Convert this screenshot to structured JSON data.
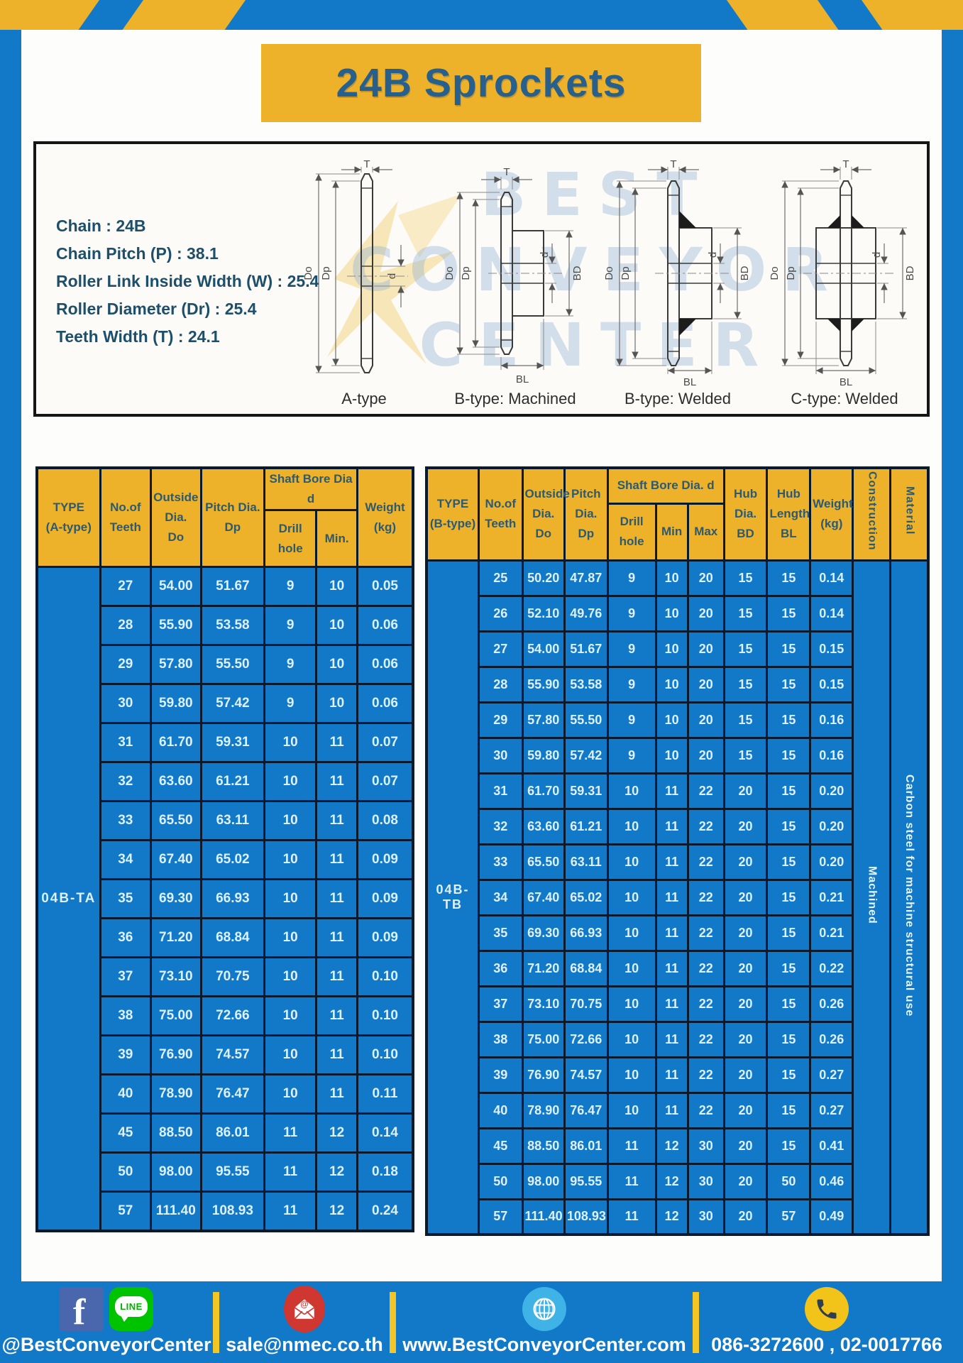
{
  "page": {
    "title": "24B Sprockets"
  },
  "colors": {
    "frame_blue": "#1278c8",
    "accent_yellow": "#eeb22a",
    "border_navy": "#0a1a2e",
    "cell_text": "#ddf1fe",
    "header_text": "#2b5a72",
    "title_text": "#27608c"
  },
  "specs": {
    "lines": [
      "Chain : 24B",
      "Chain Pitch (P) : 38.1",
      "Roller Link Inside Width (W) : 25.4",
      "Roller Diameter (Dr) : 25.4",
      "Teeth Width (T) : 24.1"
    ]
  },
  "watermark": {
    "lines": [
      "BEST",
      "CONVEYOR",
      "CENTER"
    ]
  },
  "diagrams": {
    "figures": [
      {
        "caption": "A-type",
        "labels": {
          "t": "T",
          "do": "Do",
          "dp": "Dp",
          "d": "d"
        }
      },
      {
        "caption": "B-type: Machined",
        "labels": {
          "t": "T",
          "do": "Do",
          "dp": "Dp",
          "d": "d",
          "bd": "BD",
          "bl": "BL"
        }
      },
      {
        "caption": "B-type: Welded",
        "labels": {
          "t": "T",
          "do": "Do",
          "dp": "Dp",
          "d": "d",
          "bd": "BD",
          "bl": "BL"
        }
      },
      {
        "caption": "C-type: Welded",
        "labels": {
          "t": "T",
          "do": "Do",
          "dp": "Dp",
          "d": "d",
          "bd": "BD",
          "bl": "BL"
        }
      }
    ]
  },
  "table_a": {
    "headers": {
      "type": "TYPE\n(A-type)",
      "teeth": "No.of\nTeeth",
      "outside": "Outside\nDia.\nDo",
      "pitch": "Pitch Dia.\nDp",
      "shaft": "Shaft Bore Dia d",
      "drill": "Drill hole",
      "min": "Min.",
      "weight": "Weight\n(kg)"
    },
    "type": "04B-TA",
    "rows": [
      [
        "27",
        "54.00",
        "51.67",
        "9",
        "10",
        "0.05"
      ],
      [
        "28",
        "55.90",
        "53.58",
        "9",
        "10",
        "0.06"
      ],
      [
        "29",
        "57.80",
        "55.50",
        "9",
        "10",
        "0.06"
      ],
      [
        "30",
        "59.80",
        "57.42",
        "9",
        "10",
        "0.06"
      ],
      [
        "31",
        "61.70",
        "59.31",
        "10",
        "11",
        "0.07"
      ],
      [
        "32",
        "63.60",
        "61.21",
        "10",
        "11",
        "0.07"
      ],
      [
        "33",
        "65.50",
        "63.11",
        "10",
        "11",
        "0.08"
      ],
      [
        "34",
        "67.40",
        "65.02",
        "10",
        "11",
        "0.09"
      ],
      [
        "35",
        "69.30",
        "66.93",
        "10",
        "11",
        "0.09"
      ],
      [
        "36",
        "71.20",
        "68.84",
        "10",
        "11",
        "0.09"
      ],
      [
        "37",
        "73.10",
        "70.75",
        "10",
        "11",
        "0.10"
      ],
      [
        "38",
        "75.00",
        "72.66",
        "10",
        "11",
        "0.10"
      ],
      [
        "39",
        "76.90",
        "74.57",
        "10",
        "11",
        "0.10"
      ],
      [
        "40",
        "78.90",
        "76.47",
        "10",
        "11",
        "0.11"
      ],
      [
        "45",
        "88.50",
        "86.01",
        "11",
        "12",
        "0.14"
      ],
      [
        "50",
        "98.00",
        "95.55",
        "11",
        "12",
        "0.18"
      ],
      [
        "57",
        "111.40",
        "108.93",
        "11",
        "12",
        "0.24"
      ]
    ]
  },
  "table_b": {
    "headers": {
      "type": "TYPE\n(B-type)",
      "teeth": "No.of\nTeeth",
      "outside": "Outside\nDia.\nDo",
      "pitch": "Pitch\nDia.\nDp",
      "shaft": "Shaft Bore Dia.  d",
      "drill": "Drill hole",
      "min": "Min",
      "max": "Max",
      "hub_dia": "Hub\nDia.\nBD",
      "hub_len": "Hub\nLength\nBL",
      "weight": "Weight\n(kg)",
      "construction": "Construction",
      "material": "Material"
    },
    "type": "04B-TB",
    "construction": "Machined",
    "material": "Carbon steel for machine structural use",
    "rows": [
      [
        "25",
        "50.20",
        "47.87",
        "9",
        "10",
        "20",
        "15",
        "15",
        "0.14"
      ],
      [
        "26",
        "52.10",
        "49.76",
        "9",
        "10",
        "20",
        "15",
        "15",
        "0.14"
      ],
      [
        "27",
        "54.00",
        "51.67",
        "9",
        "10",
        "20",
        "15",
        "15",
        "0.15"
      ],
      [
        "28",
        "55.90",
        "53.58",
        "9",
        "10",
        "20",
        "15",
        "15",
        "0.15"
      ],
      [
        "29",
        "57.80",
        "55.50",
        "9",
        "10",
        "20",
        "15",
        "15",
        "0.16"
      ],
      [
        "30",
        "59.80",
        "57.42",
        "9",
        "10",
        "20",
        "15",
        "15",
        "0.16"
      ],
      [
        "31",
        "61.70",
        "59.31",
        "10",
        "11",
        "22",
        "20",
        "15",
        "0.20"
      ],
      [
        "32",
        "63.60",
        "61.21",
        "10",
        "11",
        "22",
        "20",
        "15",
        "0.20"
      ],
      [
        "33",
        "65.50",
        "63.11",
        "10",
        "11",
        "22",
        "20",
        "15",
        "0.20"
      ],
      [
        "34",
        "67.40",
        "65.02",
        "10",
        "11",
        "22",
        "20",
        "15",
        "0.21"
      ],
      [
        "35",
        "69.30",
        "66.93",
        "10",
        "11",
        "22",
        "20",
        "15",
        "0.21"
      ],
      [
        "36",
        "71.20",
        "68.84",
        "10",
        "11",
        "22",
        "20",
        "15",
        "0.22"
      ],
      [
        "37",
        "73.10",
        "70.75",
        "10",
        "11",
        "22",
        "20",
        "15",
        "0.26"
      ],
      [
        "38",
        "75.00",
        "72.66",
        "10",
        "11",
        "22",
        "20",
        "15",
        "0.26"
      ],
      [
        "39",
        "76.90",
        "74.57",
        "10",
        "11",
        "22",
        "20",
        "15",
        "0.27"
      ],
      [
        "40",
        "78.90",
        "76.47",
        "10",
        "11",
        "22",
        "20",
        "15",
        "0.27"
      ],
      [
        "45",
        "88.50",
        "86.01",
        "11",
        "12",
        "30",
        "20",
        "15",
        "0.41"
      ],
      [
        "50",
        "98.00",
        "95.55",
        "11",
        "12",
        "30",
        "20",
        "50",
        "0.46"
      ],
      [
        "57",
        "111.40",
        "108.93",
        "11",
        "12",
        "30",
        "20",
        "57",
        "0.49"
      ]
    ]
  },
  "footer": {
    "social_label": "@BestConveyorCenter",
    "line_text": "LINE",
    "email": "sale@nmec.co.th",
    "website": "www.BestConveyorCenter.com",
    "phone": "086-3272600 , 02-0017766"
  }
}
